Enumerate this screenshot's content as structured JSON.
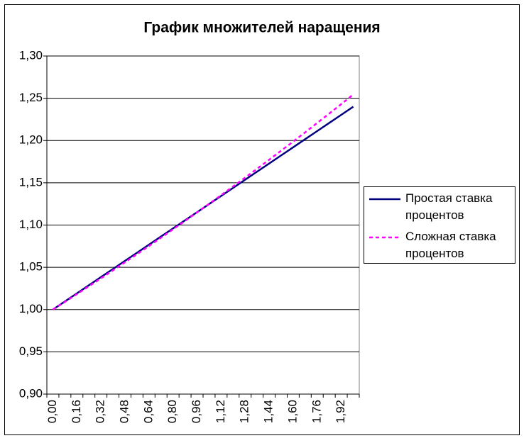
{
  "chart_data": {
    "type": "line",
    "title": "График множителей наращения",
    "categories": [
      "0,00",
      null,
      "0,16",
      null,
      "0,32",
      null,
      "0,48",
      null,
      "0,64",
      null,
      "0,80",
      null,
      "0,96",
      null,
      "1,12",
      null,
      "1,28",
      null,
      "1,44",
      null,
      "1,60",
      null,
      "1,76",
      null,
      "1,92",
      null
    ],
    "series": [
      {
        "name": "Простая ставка процентов",
        "color": "#000080",
        "dash": "solid",
        "values": [
          1,
          1.0096,
          1.0192,
          1.0288,
          1.0384,
          1.048,
          1.0576,
          1.0672,
          1.0768,
          1.0864,
          1.096,
          1.1056,
          1.1152,
          1.1248,
          1.1344,
          1.144,
          1.1536,
          1.1632,
          1.1728,
          1.1824,
          1.192,
          1.2016,
          1.2112,
          1.2208,
          1.2304,
          1.24
        ]
      },
      {
        "name": "Сложная ставка процентов",
        "color": "#ff00ff",
        "dash": "dashed",
        "values": [
          1,
          1.0091,
          1.0183,
          1.0276,
          1.0369,
          1.0464,
          1.0559,
          1.0655,
          1.0752,
          1.085,
          1.0949,
          1.1049,
          1.1149,
          1.1251,
          1.1353,
          1.1457,
          1.1561,
          1.1667,
          1.1773,
          1.188,
          1.1988,
          1.2097,
          1.2208,
          1.2319,
          1.2431,
          1.2544
        ]
      }
    ],
    "ylim": [
      0.9,
      1.3
    ],
    "yticks": [
      {
        "value": 0.9,
        "label": "0,90"
      },
      {
        "value": 0.95,
        "label": "0,95"
      },
      {
        "value": 1,
        "label": "1,00"
      },
      {
        "value": 1.05,
        "label": "1,05"
      },
      {
        "value": 1.1,
        "label": "1,10"
      },
      {
        "value": 1.15,
        "label": "1,15"
      },
      {
        "value": 1.2,
        "label": "1,20"
      },
      {
        "value": 1.25,
        "label": "1,25"
      },
      {
        "value": 1.3,
        "label": "1,30"
      }
    ],
    "grid": true,
    "legend": "right"
  }
}
